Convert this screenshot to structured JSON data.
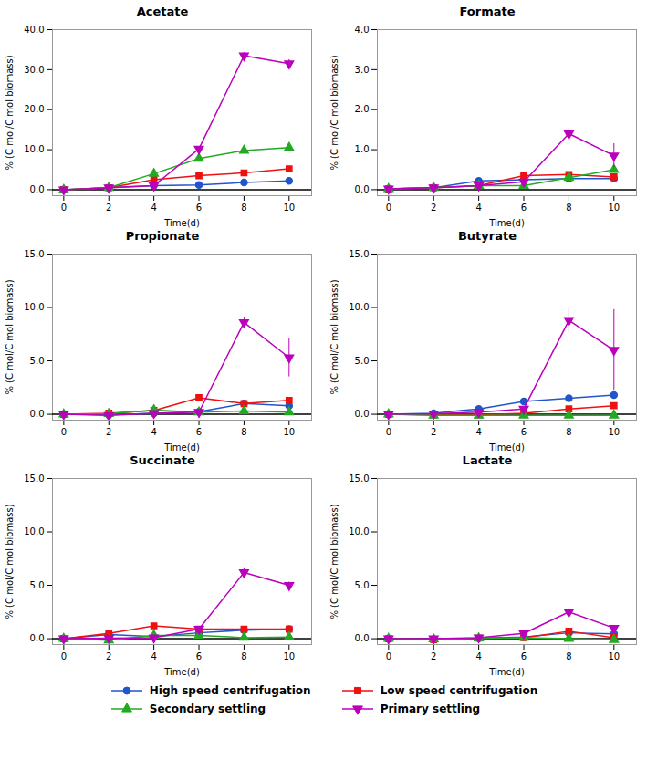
{
  "chart_data": [
    {
      "type": "line",
      "title": "Acetate",
      "xlabel": "Time(d)",
      "ylabel": "% (C mol/C mol biomass)",
      "x": [
        0,
        2,
        4,
        6,
        8,
        10
      ],
      "xlim": [
        -0.5,
        11
      ],
      "xticks": [
        0,
        2,
        4,
        6,
        8,
        10
      ],
      "ylim": [
        -1.5,
        40.0
      ],
      "yticks": [
        {
          "value": 0.0,
          "label": "0.0"
        },
        {
          "value": 10.0,
          "label": "10.0"
        },
        {
          "value": 20.0,
          "label": "20.0"
        },
        {
          "value": 30.0,
          "label": "30.0"
        },
        {
          "value": 40.0,
          "label": "40.0"
        }
      ],
      "legend": "bottom",
      "series": [
        {
          "name": "High speed centrifugation",
          "color": "#2255CC",
          "marker": "circle",
          "values": [
            0.0,
            0.5,
            1.0,
            1.2,
            1.8,
            2.2
          ],
          "yerr": [
            0.05,
            0.1,
            0.1,
            0.1,
            0.15,
            0.15
          ]
        },
        {
          "name": "Low speed centrifugation",
          "color": "#EE1111",
          "marker": "square",
          "values": [
            0.0,
            0.5,
            2.5,
            3.5,
            4.2,
            5.2
          ],
          "yerr": [
            0.05,
            0.1,
            0.2,
            0.2,
            0.2,
            0.2
          ]
        },
        {
          "name": "Secondary settling",
          "color": "#22AA22",
          "marker": "triangle-up",
          "values": [
            0.0,
            0.5,
            4.0,
            7.8,
            9.8,
            10.5
          ],
          "yerr": [
            0.05,
            0.1,
            0.3,
            0.3,
            0.3,
            0.3
          ]
        },
        {
          "name": "Primary settling",
          "color": "#BB00BB",
          "marker": "triangle-down",
          "values": [
            0.0,
            0.5,
            1.0,
            10.2,
            33.5,
            31.5
          ],
          "yerr": [
            0.05,
            0.1,
            0.2,
            0.5,
            0.8,
            1.0
          ]
        }
      ]
    },
    {
      "type": "line",
      "title": "Formate",
      "xlabel": "Time(d)",
      "ylabel": "% (C mol/C mol biomass)",
      "x": [
        0,
        2,
        4,
        6,
        8,
        10
      ],
      "xlim": [
        -0.5,
        11
      ],
      "xticks": [
        0,
        2,
        4,
        6,
        8,
        10
      ],
      "ylim": [
        -0.15,
        4.0
      ],
      "yticks": [
        {
          "value": 0.0,
          "label": "0.0"
        },
        {
          "value": 1.0,
          "label": "1.0"
        },
        {
          "value": 2.0,
          "label": "2.0"
        },
        {
          "value": 3.0,
          "label": "3.0"
        },
        {
          "value": 4.0,
          "label": "4.0"
        }
      ],
      "legend": "bottom",
      "series": [
        {
          "name": "High speed centrifugation",
          "color": "#2255CC",
          "marker": "circle",
          "values": [
            0.02,
            0.05,
            0.22,
            0.25,
            0.28,
            0.28
          ],
          "yerr": [
            0.01,
            0.02,
            0.05,
            0.05,
            0.04,
            0.04
          ]
        },
        {
          "name": "Low speed centrifugation",
          "color": "#EE1111",
          "marker": "square",
          "values": [
            0.02,
            0.05,
            0.1,
            0.35,
            0.38,
            0.32
          ],
          "yerr": [
            0.01,
            0.02,
            0.04,
            0.05,
            0.05,
            0.04
          ]
        },
        {
          "name": "Secondary settling",
          "color": "#22AA22",
          "marker": "triangle-up",
          "values": [
            0.02,
            0.05,
            0.1,
            0.1,
            0.3,
            0.5
          ],
          "yerr": [
            0.01,
            0.02,
            0.04,
            0.03,
            0.05,
            0.05
          ]
        },
        {
          "name": "Primary settling",
          "color": "#BB00BB",
          "marker": "triangle-down",
          "values": [
            0.02,
            0.05,
            0.1,
            0.2,
            1.4,
            0.85
          ],
          "yerr": [
            0.01,
            0.02,
            0.05,
            0.05,
            0.15,
            0.3
          ]
        }
      ]
    },
    {
      "type": "line",
      "title": "Propionate",
      "xlabel": "Time(d)",
      "ylabel": "% (C mol/C mol biomass)",
      "x": [
        0,
        2,
        4,
        6,
        8,
        10
      ],
      "xlim": [
        -0.5,
        11
      ],
      "xticks": [
        0,
        2,
        4,
        6,
        8,
        10
      ],
      "ylim": [
        -0.55,
        15.0
      ],
      "yticks": [
        {
          "value": 0.0,
          "label": "0.0"
        },
        {
          "value": 5.0,
          "label": "5.0"
        },
        {
          "value": 10.0,
          "label": "10.0"
        },
        {
          "value": 15.0,
          "label": "15.0"
        }
      ],
      "legend": "bottom",
      "series": [
        {
          "name": "High speed centrifugation",
          "color": "#2255CC",
          "marker": "circle",
          "values": [
            0.0,
            -0.05,
            0.1,
            0.25,
            1.0,
            0.8
          ],
          "yerr": [
            0.05,
            0.05,
            0.03,
            0.05,
            0.1,
            0.1
          ]
        },
        {
          "name": "Low speed centrifugation",
          "color": "#EE1111",
          "marker": "square",
          "values": [
            0.0,
            0.1,
            0.35,
            1.55,
            1.0,
            1.3
          ],
          "yerr": [
            0.05,
            0.05,
            0.05,
            0.15,
            0.1,
            0.1
          ]
        },
        {
          "name": "Secondary settling",
          "color": "#22AA22",
          "marker": "triangle-up",
          "values": [
            0.0,
            0.05,
            0.4,
            0.2,
            0.3,
            0.2
          ],
          "yerr": [
            0.05,
            0.05,
            0.05,
            0.05,
            0.05,
            0.05
          ]
        },
        {
          "name": "Primary settling",
          "color": "#BB00BB",
          "marker": "triangle-down",
          "values": [
            0.0,
            -0.1,
            0.1,
            0.2,
            8.6,
            5.3
          ],
          "yerr": [
            0.05,
            0.05,
            0.05,
            0.08,
            0.5,
            1.8
          ]
        }
      ]
    },
    {
      "type": "line",
      "title": "Butyrate",
      "xlabel": "Time(d)",
      "ylabel": "% (C mol/C mol biomass)",
      "x": [
        0,
        2,
        4,
        6,
        8,
        10
      ],
      "xlim": [
        -0.5,
        11
      ],
      "xticks": [
        0,
        2,
        4,
        6,
        8,
        10
      ],
      "ylim": [
        -0.55,
        15.0
      ],
      "yticks": [
        {
          "value": 0.0,
          "label": "0.0"
        },
        {
          "value": 5.0,
          "label": "5.0"
        },
        {
          "value": 10.0,
          "label": "10.0"
        },
        {
          "value": 15.0,
          "label": "15.0"
        }
      ],
      "legend": "bottom",
      "series": [
        {
          "name": "High speed centrifugation",
          "color": "#2255CC",
          "marker": "circle",
          "values": [
            0.0,
            0.1,
            0.5,
            1.2,
            1.5,
            1.8
          ],
          "yerr": [
            0.05,
            0.05,
            0.08,
            0.12,
            0.15,
            0.15
          ]
        },
        {
          "name": "Low speed centrifugation",
          "color": "#EE1111",
          "marker": "square",
          "values": [
            0.0,
            -0.05,
            -0.05,
            0.1,
            0.5,
            0.8
          ],
          "yerr": [
            0.05,
            0.05,
            0.05,
            0.05,
            0.05,
            0.08
          ]
        },
        {
          "name": "Secondary settling",
          "color": "#22AA22",
          "marker": "triangle-up",
          "values": [
            0.0,
            -0.1,
            -0.1,
            -0.1,
            -0.1,
            -0.1
          ],
          "yerr": [
            0.05,
            0.05,
            0.05,
            0.05,
            0.05,
            0.05
          ]
        },
        {
          "name": "Primary settling",
          "color": "#BB00BB",
          "marker": "triangle-down",
          "values": [
            0.0,
            0.05,
            0.2,
            0.5,
            8.8,
            6.0
          ],
          "yerr": [
            0.05,
            0.05,
            0.05,
            0.08,
            1.2,
            3.8
          ]
        }
      ]
    },
    {
      "type": "line",
      "title": "Succinate",
      "xlabel": "Time(d)",
      "ylabel": "% (C mol/C mol biomass)",
      "x": [
        0,
        2,
        4,
        6,
        8,
        10
      ],
      "xlim": [
        -0.5,
        11
      ],
      "xticks": [
        0,
        2,
        4,
        6,
        8,
        10
      ],
      "ylim": [
        -0.55,
        15.0
      ],
      "yticks": [
        {
          "value": 0.0,
          "label": "0.0"
        },
        {
          "value": 5.0,
          "label": "5.0"
        },
        {
          "value": 10.0,
          "label": "10.0"
        },
        {
          "value": 15.0,
          "label": "15.0"
        }
      ],
      "legend": "bottom",
      "series": [
        {
          "name": "High speed centrifugation",
          "color": "#2255CC",
          "marker": "circle",
          "values": [
            0.0,
            0.4,
            0.2,
            0.55,
            0.8,
            0.9
          ],
          "yerr": [
            0.05,
            0.06,
            0.05,
            0.08,
            0.1,
            0.1
          ]
        },
        {
          "name": "Low speed centrifugation",
          "color": "#EE1111",
          "marker": "square",
          "values": [
            0.0,
            0.5,
            1.2,
            0.9,
            0.9,
            0.9
          ],
          "yerr": [
            0.05,
            0.08,
            0.2,
            0.1,
            0.1,
            0.1
          ]
        },
        {
          "name": "Secondary settling",
          "color": "#22AA22",
          "marker": "triangle-up",
          "values": [
            0.0,
            -0.15,
            0.3,
            0.3,
            0.1,
            0.15
          ],
          "yerr": [
            0.05,
            0.05,
            0.06,
            0.08,
            0.05,
            0.05
          ]
        },
        {
          "name": "Primary settling",
          "color": "#BB00BB",
          "marker": "triangle-down",
          "values": [
            0.0,
            0.05,
            0.1,
            0.9,
            6.2,
            5.0
          ],
          "yerr": [
            0.05,
            0.05,
            0.05,
            0.1,
            0.35,
            0.3
          ]
        }
      ]
    },
    {
      "type": "line",
      "title": "Lactate",
      "xlabel": "Time(d)",
      "ylabel": "% (C mol/C mol biomass)",
      "x": [
        0,
        2,
        4,
        6,
        8,
        10
      ],
      "xlim": [
        -0.5,
        11
      ],
      "xticks": [
        0,
        2,
        4,
        6,
        8,
        10
      ],
      "ylim": [
        -0.55,
        15.0
      ],
      "yticks": [
        {
          "value": 0.0,
          "label": "0.0"
        },
        {
          "value": 5.0,
          "label": "5.0"
        },
        {
          "value": 10.0,
          "label": "10.0"
        },
        {
          "value": 15.0,
          "label": "15.0"
        }
      ],
      "legend": "bottom",
      "series": [
        {
          "name": "High speed centrifugation",
          "color": "#2255CC",
          "marker": "circle",
          "values": [
            0.0,
            -0.05,
            0.05,
            0.15,
            0.55,
            0.45
          ],
          "yerr": [
            0.05,
            0.05,
            0.03,
            0.05,
            0.08,
            0.05
          ]
        },
        {
          "name": "Low speed centrifugation",
          "color": "#EE1111",
          "marker": "square",
          "values": [
            0.0,
            -0.1,
            0.05,
            0.1,
            0.7,
            0.1
          ],
          "yerr": [
            0.05,
            0.05,
            0.03,
            0.05,
            0.1,
            0.03
          ]
        },
        {
          "name": "Secondary settling",
          "color": "#22AA22",
          "marker": "triangle-up",
          "values": [
            0.0,
            -0.05,
            0.05,
            0.1,
            0.0,
            -0.1
          ],
          "yerr": [
            0.05,
            0.05,
            0.03,
            0.05,
            0.03,
            0.03
          ]
        },
        {
          "name": "Primary settling",
          "color": "#BB00BB",
          "marker": "triangle-down",
          "values": [
            0.0,
            0.0,
            0.1,
            0.5,
            2.5,
            1.0
          ],
          "yerr": [
            0.05,
            0.05,
            0.05,
            0.1,
            0.35,
            0.2
          ]
        }
      ]
    }
  ]
}
